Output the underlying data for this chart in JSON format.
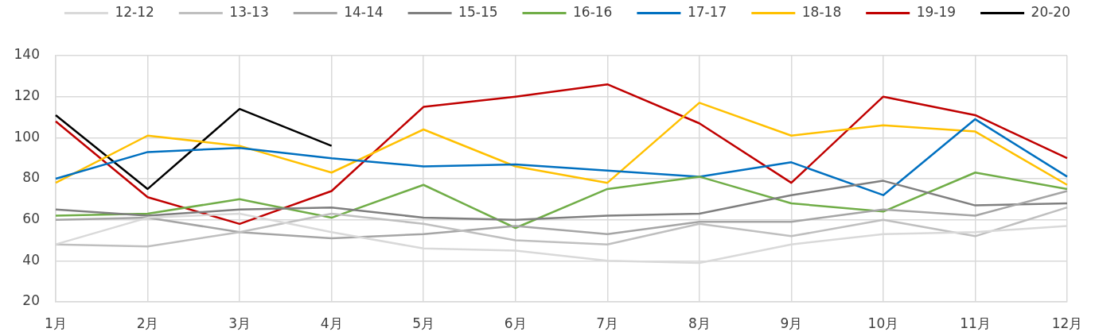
{
  "chart_data": {
    "type": "line",
    "categories": [
      "1月",
      "2月",
      "3月",
      "4月",
      "5月",
      "6月",
      "7月",
      "8月",
      "9月",
      "10月",
      "11月",
      "12月"
    ],
    "ylim": [
      20,
      140
    ],
    "yticks": [
      20,
      40,
      60,
      80,
      100,
      120,
      140
    ],
    "grid": true,
    "legend": "top",
    "series": [
      {
        "name": "12-12",
        "color": "#d9d9d9",
        "values": [
          48,
          61,
          63,
          54,
          46,
          45,
          40,
          39,
          48,
          53,
          54,
          57
        ]
      },
      {
        "name": "13-13",
        "color": "#bfbfbf",
        "values": [
          48,
          47,
          54,
          63,
          58,
          50,
          48,
          58,
          52,
          60,
          52,
          66
        ]
      },
      {
        "name": "14-14",
        "color": "#a5a5a5",
        "values": [
          60,
          61,
          54,
          51,
          53,
          57,
          53,
          59,
          59,
          65,
          62,
          74
        ]
      },
      {
        "name": "15-15",
        "color": "#7f7f7f",
        "values": [
          65,
          62,
          65,
          66,
          61,
          60,
          62,
          63,
          72,
          79,
          67,
          68
        ]
      },
      {
        "name": "16-16",
        "color": "#70ad47",
        "values": [
          62,
          63,
          70,
          61,
          77,
          56,
          75,
          81,
          68,
          64,
          83,
          75
        ]
      },
      {
        "name": "17-17",
        "color": "#0070c0",
        "values": [
          80,
          93,
          95,
          90,
          86,
          87,
          84,
          81,
          88,
          72,
          109,
          81
        ]
      },
      {
        "name": "18-18",
        "color": "#ffc000",
        "values": [
          78,
          101,
          96,
          83,
          104,
          86,
          78,
          117,
          101,
          106,
          103,
          77
        ]
      },
      {
        "name": "19-19",
        "color": "#c00000",
        "values": [
          108,
          71,
          58,
          74,
          115,
          120,
          126,
          107,
          78,
          120,
          111,
          90
        ]
      },
      {
        "name": "20-20",
        "color": "#000000",
        "values": [
          111,
          75,
          114,
          96,
          null,
          null,
          null,
          null,
          null,
          null,
          null,
          null
        ]
      }
    ]
  }
}
